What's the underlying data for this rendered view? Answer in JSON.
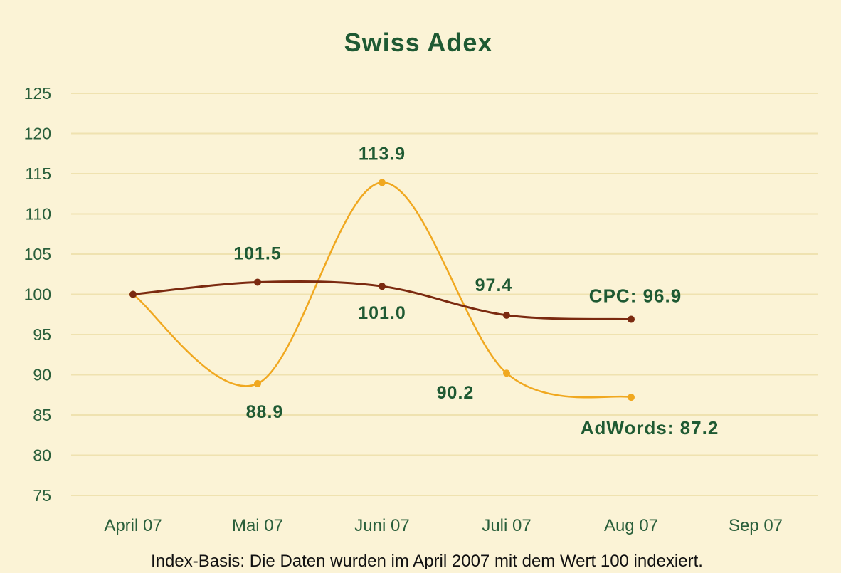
{
  "chart_data": {
    "type": "line",
    "title": "Swiss Adex",
    "categories": [
      "April 07",
      "Mai 07",
      "Juni 07",
      "Juli 07",
      "Aug 07",
      "Sep 07"
    ],
    "ylim": [
      75,
      125
    ],
    "yticks": [
      125,
      120,
      115,
      110,
      105,
      100,
      95,
      90,
      85,
      80,
      75
    ],
    "grid": true,
    "series": [
      {
        "name": "CPC",
        "color": "#7b2a10",
        "values": [
          100.0,
          101.5,
          101.0,
          97.4,
          96.9,
          null
        ],
        "data_labels": [
          "",
          "101.5",
          "101.0",
          "97.4",
          ""
        ],
        "end_label": "CPC: 96.9"
      },
      {
        "name": "AdWords",
        "color": "#f0a820",
        "values": [
          100.0,
          88.9,
          113.9,
          90.2,
          87.2,
          null
        ],
        "data_labels": [
          "",
          "88.9",
          "113.9",
          "90.2",
          ""
        ],
        "end_label": "AdWords: 87.2"
      }
    ],
    "footnote": "Index-Basis: Die Daten wurden im April 2007 mit dem Wert 100 indexiert."
  }
}
